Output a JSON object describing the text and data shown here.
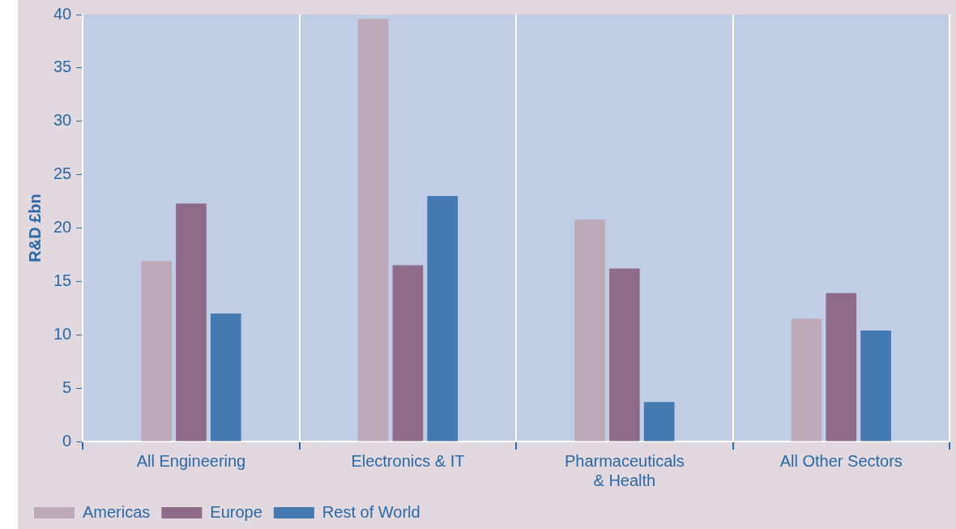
{
  "chart_data": {
    "type": "bar",
    "ylabel": "R&D £bn",
    "categories": [
      "All Engineering",
      "Electronics & IT",
      "Pharmaceuticals\n& Health",
      "All Other Sectors"
    ],
    "series": [
      {
        "name": "Americas",
        "color": "#bea9b9",
        "values": [
          16.9,
          39.6,
          20.8,
          11.5
        ]
      },
      {
        "name": "Europe",
        "color": "#8d6b89",
        "values": [
          22.3,
          16.5,
          16.2,
          13.9
        ]
      },
      {
        "name": "Rest of World",
        "color": "#4479b2",
        "values": [
          12.0,
          23.0,
          3.7,
          10.4
        ]
      }
    ],
    "ylim": [
      0,
      40
    ],
    "yticks": [
      0,
      5,
      10,
      15,
      20,
      25,
      30,
      35,
      40
    ],
    "grid": "x",
    "legend": "bottom left"
  }
}
